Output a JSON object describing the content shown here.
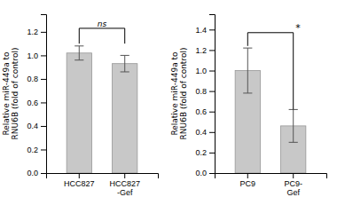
{
  "chart_data": [
    {
      "type": "bar",
      "categories": [
        "HCC827",
        "HCC827\n-Gef"
      ],
      "values": [
        1.02,
        0.93
      ],
      "errors": [
        0.06,
        0.07
      ],
      "color": "#c8c8c8",
      "ylim": [
        0,
        1.35
      ],
      "yticks": [
        {
          "value": 0.0,
          "label": "0.0"
        },
        0.2,
        0.4,
        0.6,
        0.8,
        {
          "value": 1.0,
          "label": "1.0"
        },
        1.2
      ],
      "ylabel": "Relative miR-449a to\nRNU6B (fold of control)",
      "annotations": [
        {
          "text": "ns",
          "y": 1.23,
          "y_left": 1.1,
          "y_right": 1.1
        }
      ]
    },
    {
      "type": "bar",
      "categories": [
        "PC9",
        "PC9-\nGef"
      ],
      "values": [
        1.0,
        0.46
      ],
      "errors": [
        0.22,
        0.16
      ],
      "color": "#c8c8c8",
      "ylim": [
        0,
        1.55
      ],
      "yticks": [
        {
          "value": 0.0,
          "label": "0.0"
        },
        0.2,
        0.4,
        0.6,
        0.8,
        {
          "value": 1.0,
          "label": "1.0"
        },
        1.2,
        1.4
      ],
      "ylabel": "Relative miR-449a to\nRNU6B (fold of control)",
      "annotations": [
        {
          "text": "*",
          "y": 1.37,
          "y_left": 1.24,
          "y_right": 0.62
        }
      ]
    }
  ]
}
